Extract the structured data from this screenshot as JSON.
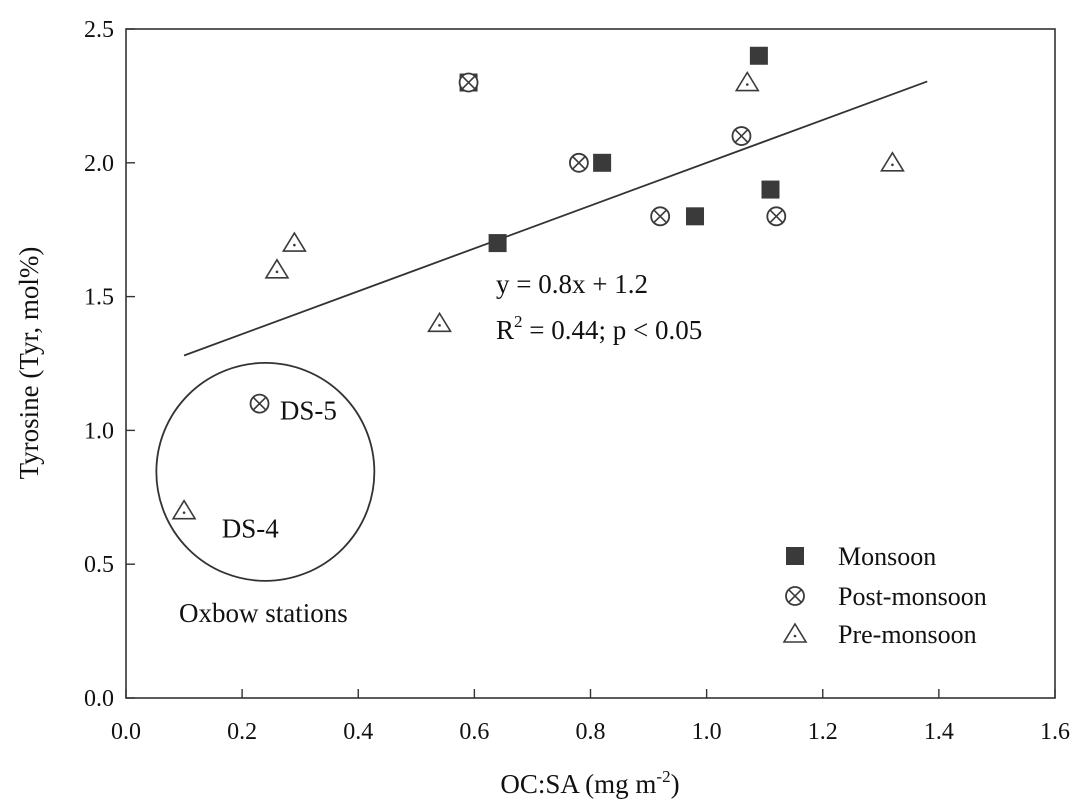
{
  "chart_data": {
    "type": "scatter",
    "xlabel": "OC:SA (mg m",
    "xlabel_sup": "-2",
    "xlabel_end": ")",
    "ylabel": "Tyrosine (Tyr, mol%)",
    "xlim": [
      0.0,
      1.6
    ],
    "ylim": [
      0.0,
      2.5
    ],
    "x_ticks": [
      0.0,
      0.2,
      0.4,
      0.6,
      0.8,
      1.0,
      1.2,
      1.4,
      1.6
    ],
    "x_tick_labels": [
      "0.0",
      "0.2",
      "0.4",
      "0.6",
      "0.8",
      "1.0",
      "1.2",
      "1.4",
      "1.6"
    ],
    "y_ticks": [
      0.0,
      0.5,
      1.0,
      1.5,
      2.0,
      2.5
    ],
    "y_tick_labels": [
      "0.0",
      "0.5",
      "1.0",
      "1.5",
      "2.0",
      "2.5"
    ],
    "grid": false,
    "legend_position": "bottom-right",
    "series": [
      {
        "name": "Monsoon",
        "marker": "filled-square",
        "color": "#3a3a3a",
        "x": [
          0.59,
          0.64,
          0.82,
          0.98,
          1.09,
          1.11
        ],
        "y": [
          2.3,
          1.7,
          2.0,
          1.8,
          2.4,
          1.9
        ]
      },
      {
        "name": "Post-monsoon",
        "marker": "circle-x",
        "color": "#3a3a3a",
        "x": [
          0.23,
          0.59,
          0.78,
          0.92,
          1.06,
          1.12
        ],
        "y": [
          1.1,
          2.3,
          2.0,
          1.8,
          2.1,
          1.8
        ]
      },
      {
        "name": "Pre-monsoon",
        "marker": "open-triangle-dot",
        "color": "#3a3a3a",
        "x": [
          0.1,
          0.26,
          0.29,
          0.54,
          1.07,
          1.32
        ],
        "y": [
          0.7,
          1.6,
          1.7,
          1.4,
          2.3,
          2.0
        ]
      }
    ],
    "trendline": {
      "x": [
        0.1,
        1.38
      ],
      "slope": 0.8,
      "intercept": 1.2
    },
    "regression_equation": "y = 0.8x + 1.2",
    "r2_prefix": "R",
    "r2_sup": "2",
    "r2_rest": " = 0.44; p < 0.05",
    "annotations": [
      {
        "text": "DS-5",
        "x": 0.265,
        "y": 1.04
      },
      {
        "text": "DS-4",
        "x": 0.165,
        "y": 0.6
      }
    ],
    "group_circle": {
      "label": "Oxbow stations",
      "cx": 0.24,
      "cy": 0.845
    }
  }
}
